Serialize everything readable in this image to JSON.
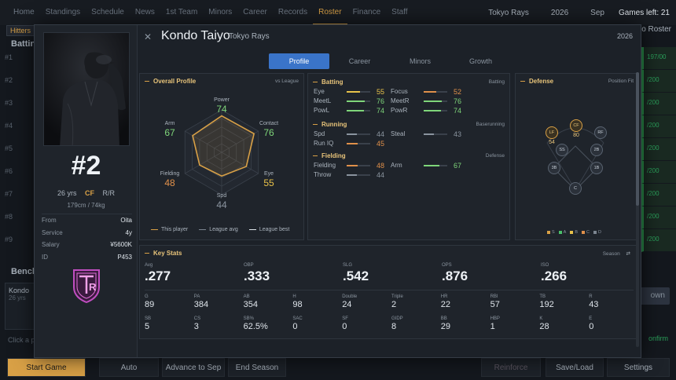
{
  "nav": {
    "items": [
      "Home",
      "Standings",
      "Schedule",
      "News",
      "1st Team",
      "Minors",
      "Career",
      "Records",
      "Roster",
      "Finance",
      "Staff"
    ],
    "active": "Roster",
    "team": "Tokyo Rays",
    "year": "2026",
    "month": "Sep",
    "games_left": "Games left: 21"
  },
  "background": {
    "hitters_tab": "Hitters",
    "batting_heading": "Batting",
    "row_numbers": [
      "#1",
      "#2",
      "#3",
      "#4",
      "#5",
      "#6",
      "#7",
      "#8",
      "#9"
    ],
    "right_col": [
      "197/00",
      "/200",
      "/200",
      "/200",
      "/200",
      "/200",
      "/200",
      "/200",
      "/200"
    ],
    "bench_heading": "Bench",
    "bench_player": "Kondo",
    "bench_age": "26 yrs",
    "right_tab": "o Roster",
    "own_button": "own",
    "confirm": "onfirm",
    "click_hint": "Click a p"
  },
  "bottombar": {
    "start_game": "Start Game",
    "auto": "Auto",
    "advance": "Advance to Sep",
    "end_season": "End Season",
    "reinforce": "Reinforce",
    "save_load": "Save/Load",
    "settings": "Settings"
  },
  "player": {
    "name": "Kondo Taiyo",
    "team": "Tokyo Rays",
    "season": "2026",
    "number": "#2",
    "age": "26 yrs",
    "position": "CF",
    "bats_throws": "R/R",
    "height_weight": "179cm / 74kg",
    "info": [
      {
        "label": "From",
        "value": "Oita"
      },
      {
        "label": "Service",
        "value": "4y"
      },
      {
        "label": "Salary",
        "value": "¥5600K"
      },
      {
        "label": "ID",
        "value": "P453"
      }
    ],
    "logo_text": "R"
  },
  "tabs": [
    {
      "label": "Profile",
      "active": true
    },
    {
      "label": "Career",
      "active": false
    },
    {
      "label": "Minors",
      "active": false
    },
    {
      "label": "Growth",
      "active": false
    }
  ],
  "overall_profile": {
    "title": "Overall Profile",
    "right": "vs League",
    "axes": [
      {
        "label": "Power",
        "value": "74",
        "color": "#7fd67a"
      },
      {
        "label": "Contact",
        "value": "76",
        "color": "#7fd67a"
      },
      {
        "label": "Eye",
        "value": "55",
        "color": "#e8c24a"
      },
      {
        "label": "Spd",
        "value": "44",
        "color": "#8a949f"
      },
      {
        "label": "Fielding",
        "value": "48",
        "color": "#e0904a"
      },
      {
        "label": "Arm",
        "value": "67",
        "color": "#7fd67a"
      }
    ],
    "legend": [
      "This player",
      "League avg",
      "League best"
    ]
  },
  "batting": {
    "title": "Batting",
    "right": "Batting",
    "attrs": [
      {
        "label": "Eye",
        "value": "55",
        "color": "#e8c24a"
      },
      {
        "label": "Focus",
        "value": "52",
        "color": "#e0904a"
      },
      {
        "label": "MeetL",
        "value": "76",
        "color": "#7fd67a"
      },
      {
        "label": "MeetR",
        "value": "76",
        "color": "#7fd67a"
      },
      {
        "label": "PowL",
        "value": "74",
        "color": "#7fd67a"
      },
      {
        "label": "PowR",
        "value": "74",
        "color": "#7fd67a"
      }
    ]
  },
  "running": {
    "title": "Running",
    "right": "Baserunning",
    "attrs": [
      {
        "label": "Spd",
        "value": "44",
        "color": "#8a949f"
      },
      {
        "label": "Steal",
        "value": "43",
        "color": "#8a949f"
      },
      {
        "label": "Run IQ",
        "value": "45",
        "color": "#e0904a"
      }
    ]
  },
  "fielding": {
    "title": "Fielding",
    "right": "Defense",
    "attrs": [
      {
        "label": "Fielding",
        "value": "48",
        "color": "#e0904a"
      },
      {
        "label": "Arm",
        "value": "67",
        "color": "#7fd67a"
      },
      {
        "label": "Throw",
        "value": "44",
        "color": "#8a949f"
      }
    ]
  },
  "defense": {
    "title": "Defense",
    "right": "Position Fit",
    "positions": [
      {
        "label": "LF",
        "value": "54",
        "hot": true
      },
      {
        "label": "CF",
        "value": "80",
        "hot": true
      },
      {
        "label": "RF",
        "value": "",
        "hot": false
      },
      {
        "label": "SS",
        "value": "",
        "hot": false
      },
      {
        "label": "2B",
        "value": "",
        "hot": false
      },
      {
        "label": "3B",
        "value": "",
        "hot": false
      },
      {
        "label": "1B",
        "value": "",
        "hot": false
      },
      {
        "label": "C",
        "value": "",
        "hot": false
      }
    ],
    "legend": [
      {
        "label": "S",
        "color": "#d8a046"
      },
      {
        "label": "A",
        "color": "#4ac06a"
      },
      {
        "label": "B",
        "color": "#e8c24a"
      },
      {
        "label": "C",
        "color": "#e0904a"
      },
      {
        "label": "D",
        "color": "#7c8590"
      }
    ]
  },
  "key_stats": {
    "title": "Key Stats",
    "right": "Season",
    "rate": [
      {
        "label": "Avg",
        "value": ".277"
      },
      {
        "label": "OBP",
        "value": ".333"
      },
      {
        "label": "SLG",
        "value": ".542"
      },
      {
        "label": "OPS",
        "value": ".876"
      },
      {
        "label": "ISO",
        "value": ".266"
      }
    ],
    "row1": [
      {
        "label": "G",
        "value": "89"
      },
      {
        "label": "PA",
        "value": "384"
      },
      {
        "label": "AB",
        "value": "354"
      },
      {
        "label": "H",
        "value": "98"
      },
      {
        "label": "Double",
        "value": "24"
      },
      {
        "label": "Triple",
        "value": "2"
      },
      {
        "label": "HR",
        "value": "22"
      },
      {
        "label": "RBI",
        "value": "57"
      },
      {
        "label": "TB",
        "value": "192"
      },
      {
        "label": "R",
        "value": "43"
      }
    ],
    "row2": [
      {
        "label": "SB",
        "value": "5"
      },
      {
        "label": "CS",
        "value": "3"
      },
      {
        "label": "SB%",
        "value": "62.5%"
      },
      {
        "label": "SAC",
        "value": "0"
      },
      {
        "label": "SF",
        "value": "0"
      },
      {
        "label": "GIDP",
        "value": "8"
      },
      {
        "label": "BB",
        "value": "29"
      },
      {
        "label": "HBP",
        "value": "1"
      },
      {
        "label": "K",
        "value": "28"
      },
      {
        "label": "E",
        "value": "0"
      }
    ]
  }
}
